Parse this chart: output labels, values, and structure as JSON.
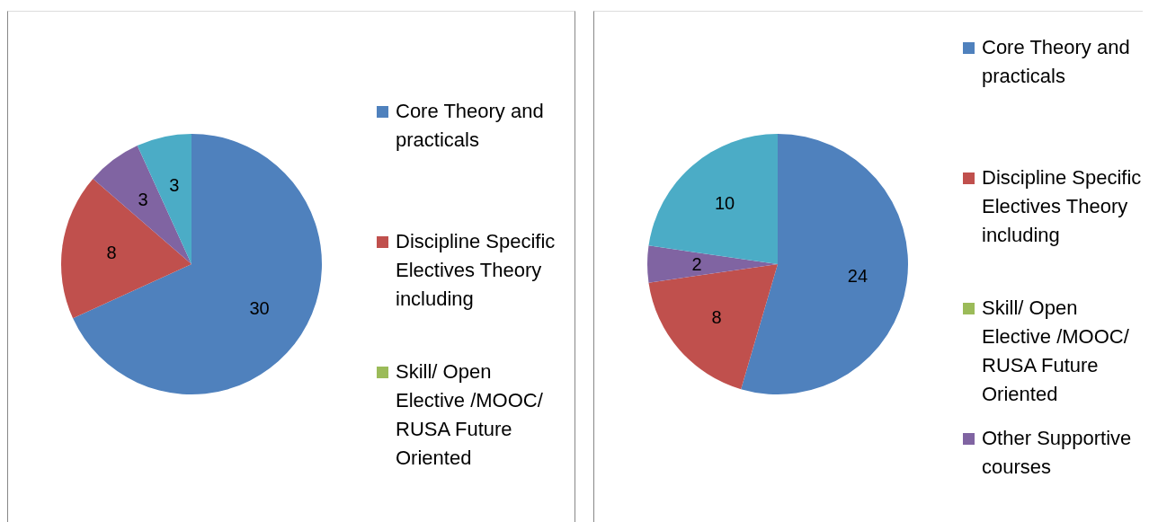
{
  "chart_data": [
    {
      "type": "pie",
      "categories": [
        "Core Theory and practicals",
        "Discipline Specific Electives Theory including",
        "Skill/ Open Elective /MOOC/ RUSA Future Oriented",
        null,
        null
      ],
      "values": [
        30,
        8,
        0,
        3,
        3
      ],
      "colors": [
        "#4f81bd",
        "#c0504d",
        "#9bbb59",
        "#8064a2",
        "#4bacc6"
      ],
      "value_labels": [
        "30",
        "8",
        null,
        "3",
        "3"
      ],
      "legend": "right"
    },
    {
      "type": "pie",
      "categories": [
        "Core Theory and practicals",
        "Discipline Specific Electives Theory including",
        "Skill/ Open Elective /MOOC/ RUSA Future Oriented",
        "Other Supportive courses",
        null
      ],
      "values": [
        24,
        8,
        0,
        2,
        10
      ],
      "colors": [
        "#4f81bd",
        "#c0504d",
        "#9bbb59",
        "#8064a2",
        "#4bacc6"
      ],
      "value_labels": [
        "24",
        "8",
        null,
        "2",
        "10"
      ],
      "legend": "right"
    }
  ]
}
